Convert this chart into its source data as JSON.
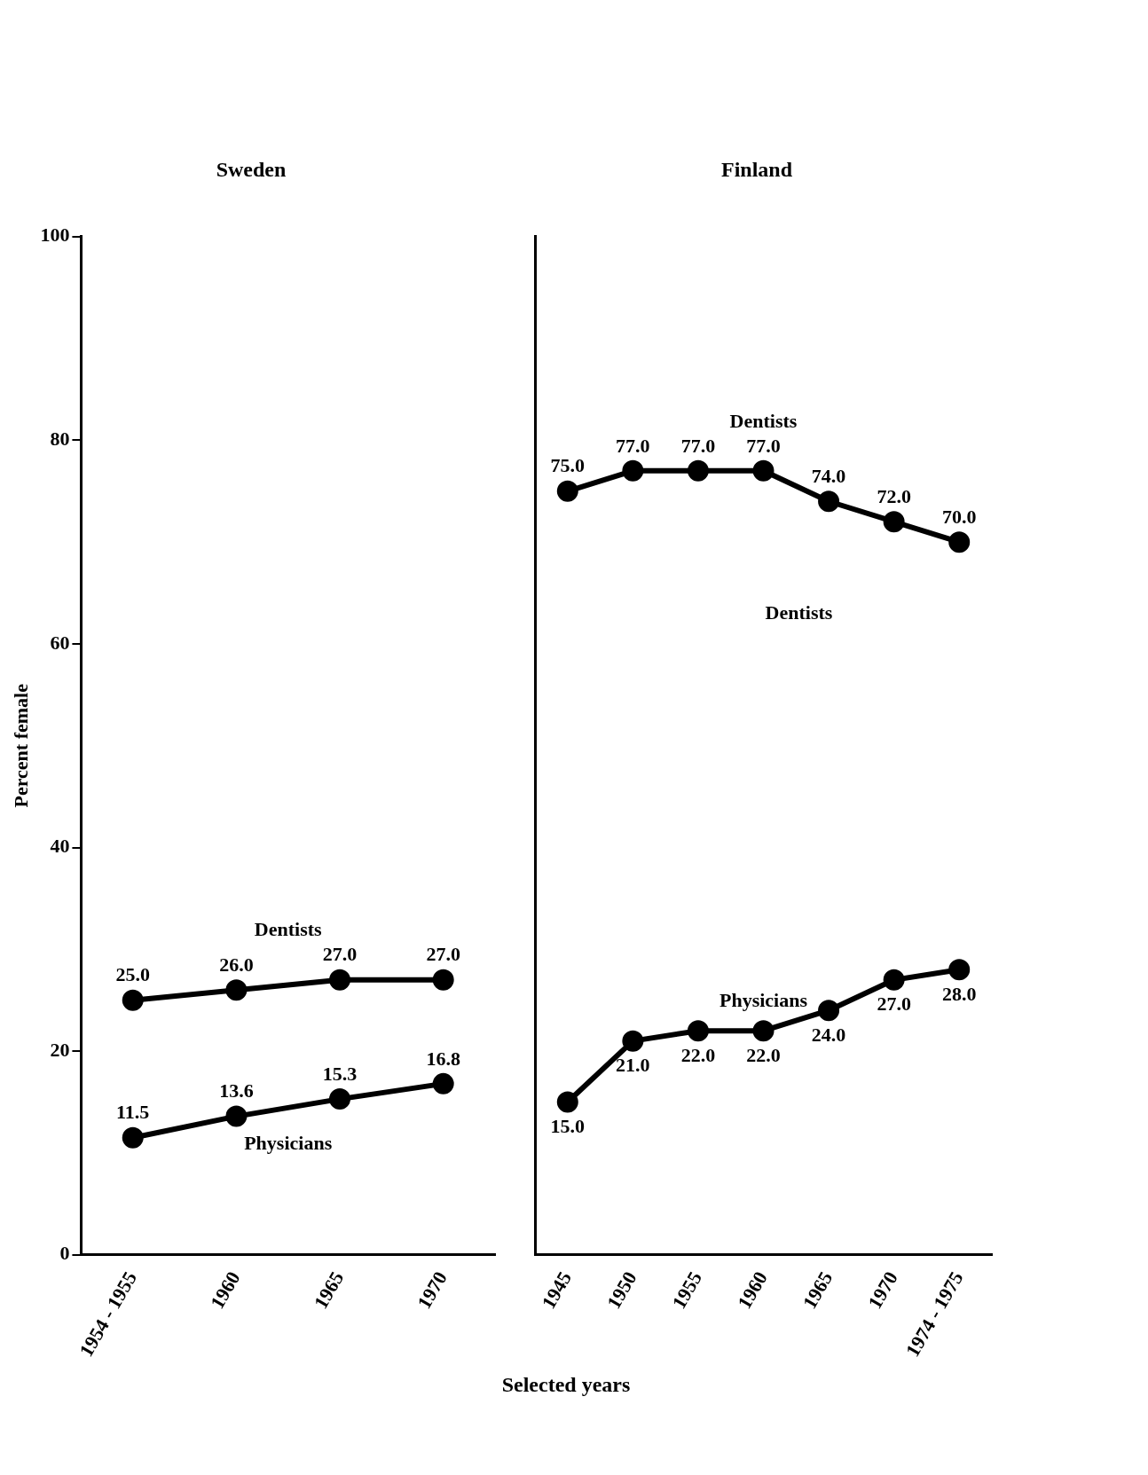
{
  "chart_data": [
    {
      "type": "line",
      "title": "Sweden",
      "ylabel": "Percent female",
      "xlabel": "Selected years",
      "categories": [
        "1954 - 1955",
        "1960",
        "1965",
        "1970"
      ],
      "series": [
        {
          "name": "Dentists",
          "color": "#000000",
          "values": [
            25.0,
            26.0,
            27.0,
            27.0
          ],
          "value_labels": [
            "25.0",
            "26.0",
            "27.0",
            "27.0"
          ]
        },
        {
          "name": "Physicians",
          "color": "#000000",
          "values": [
            11.5,
            13.6,
            15.3,
            16.8
          ],
          "value_labels": [
            "11.5",
            "13.6",
            "15.3",
            "16.8"
          ]
        }
      ],
      "ylim": [
        0,
        100
      ],
      "yticks": [
        0,
        20,
        40,
        60,
        80,
        100
      ],
      "grid": false,
      "legend": false,
      "marker": "circle",
      "line_style": "solid"
    },
    {
      "type": "line",
      "title": "Finland",
      "categories": [
        "1945",
        "1950",
        "1955",
        "1960",
        "1965",
        "1970",
        "1974 - 1975"
      ],
      "series": [
        {
          "name": "Dentists",
          "color": "#000000",
          "values": [
            75.0,
            77.0,
            77.0,
            77.0,
            74.0,
            72.0,
            70.0
          ],
          "value_labels": [
            "75.0",
            "77.0",
            "77.0",
            "77.0",
            "74.0",
            "72.0",
            "70.0"
          ]
        },
        {
          "name": "Physicians",
          "color": "#000000",
          "values": [
            15.0,
            21.0,
            22.0,
            22.0,
            24.0,
            27.0,
            28.0
          ],
          "value_labels": [
            "15.0",
            "21.0",
            "22.0",
            "22.0",
            "24.0",
            "27.0",
            "28.0"
          ]
        }
      ],
      "annotations": [
        "Dentists"
      ],
      "ylim": [
        0,
        100
      ],
      "yticks": [
        0,
        20,
        40,
        60,
        80,
        100
      ],
      "tick_labels": "x",
      "grid": false,
      "legend": false,
      "marker": "circle",
      "line_style": "solid"
    }
  ]
}
